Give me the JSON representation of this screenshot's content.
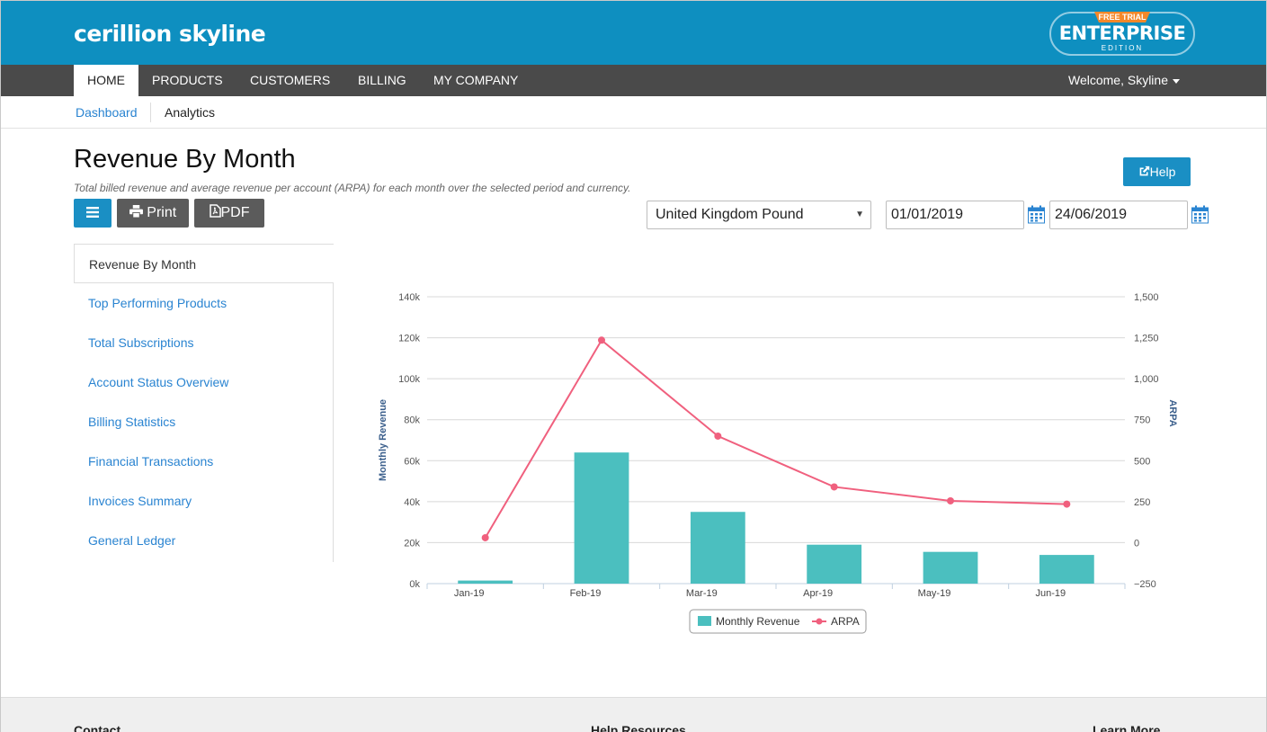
{
  "brand": {
    "logo": "cerillion skyline",
    "edition_ribbon": "FREE TRIAL",
    "edition_name": "ENTERPRISE",
    "edition_sub": "EDITION"
  },
  "nav": {
    "items": [
      "HOME",
      "PRODUCTS",
      "CUSTOMERS",
      "BILLING",
      "MY COMPANY"
    ],
    "active": "HOME",
    "welcome": "Welcome, Skyline"
  },
  "subnav": {
    "dashboard": "Dashboard",
    "analytics": "Analytics"
  },
  "page": {
    "title": "Revenue By Month",
    "subtitle": "Total billed revenue and average revenue per account (ARPA) for each month over the selected period and currency.",
    "help": "Help",
    "print": "Print",
    "pdf": "PDF"
  },
  "filters": {
    "currency": "United Kingdom Pound",
    "date_from": "01/01/2019",
    "date_to": "24/06/2019"
  },
  "sidebar": {
    "items": [
      "Revenue By Month",
      "Top Performing Products",
      "Total Subscriptions",
      "Account Status Overview",
      "Billing Statistics",
      "Financial Transactions",
      "Invoices Summary",
      "General Ledger"
    ]
  },
  "colors": {
    "bar": "#4bbfbf",
    "line": "#f0607e",
    "brand_blue": "#0e8fc0"
  },
  "chart_data": {
    "type": "bar",
    "categories": [
      "Jan-19",
      "Feb-19",
      "Mar-19",
      "Apr-19",
      "May-19",
      "Jun-19"
    ],
    "series": [
      {
        "name": "Monthly Revenue",
        "type": "bar",
        "axis": "left",
        "values": [
          1500,
          64000,
          35000,
          19000,
          15500,
          14000
        ]
      },
      {
        "name": "ARPA",
        "type": "line",
        "axis": "right",
        "values": [
          30,
          1235,
          650,
          340,
          255,
          235
        ]
      }
    ],
    "ylabel": "Monthly Revenue",
    "y2label": "ARPA",
    "ylim": [
      0,
      140000
    ],
    "y2lim": [
      -250,
      1500
    ],
    "yticks": [
      "0k",
      "20k",
      "40k",
      "60k",
      "80k",
      "100k",
      "120k",
      "140k"
    ],
    "y2ticks": [
      "−250",
      "0",
      "250",
      "500",
      "750",
      "1,000",
      "1,250",
      "1,500"
    ],
    "grid": true,
    "legend": "bottom-center"
  },
  "footer": {
    "contact": "Contact",
    "help": "Help Resources",
    "learn": "Learn More"
  }
}
